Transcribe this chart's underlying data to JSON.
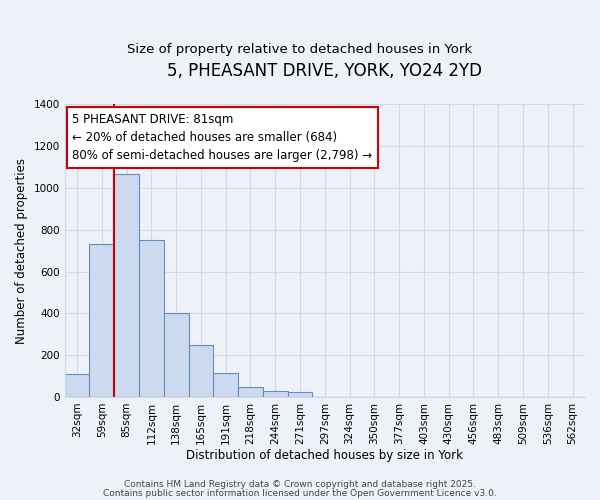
{
  "title": "5, PHEASANT DRIVE, YORK, YO24 2YD",
  "subtitle": "Size of property relative to detached houses in York",
  "xlabel": "Distribution of detached houses by size in York",
  "ylabel": "Number of detached properties",
  "bar_labels": [
    "32sqm",
    "59sqm",
    "85sqm",
    "112sqm",
    "138sqm",
    "165sqm",
    "191sqm",
    "218sqm",
    "244sqm",
    "271sqm",
    "297sqm",
    "324sqm",
    "350sqm",
    "377sqm",
    "403sqm",
    "430sqm",
    "456sqm",
    "483sqm",
    "509sqm",
    "536sqm",
    "562sqm"
  ],
  "bar_values": [
    110,
    730,
    1065,
    750,
    400,
    248,
    113,
    50,
    28,
    22,
    0,
    0,
    0,
    0,
    0,
    0,
    0,
    0,
    0,
    0,
    0
  ],
  "bar_color": "#ccd9ee",
  "bar_edge_color": "#6090c0",
  "vline_x": 1.5,
  "vline_color": "#cc0000",
  "ylim": [
    0,
    1400
  ],
  "yticks": [
    0,
    200,
    400,
    600,
    800,
    1000,
    1200,
    1400
  ],
  "annotation_line1": "5 PHEASANT DRIVE: 81sqm",
  "annotation_line2": "← 20% of detached houses are smaller (684)",
  "annotation_line3": "80% of semi-detached houses are larger (2,798) →",
  "footer_line1": "Contains HM Land Registry data © Crown copyright and database right 2025.",
  "footer_line2": "Contains public sector information licensed under the Open Government Licence v3.0.",
  "background_color": "#eef1f8",
  "grid_color": "#d0d8ea",
  "title_fontsize": 12,
  "subtitle_fontsize": 9.5,
  "axis_label_fontsize": 8.5,
  "tick_fontsize": 7.5,
  "annotation_fontsize": 8.5,
  "footer_fontsize": 6.5
}
